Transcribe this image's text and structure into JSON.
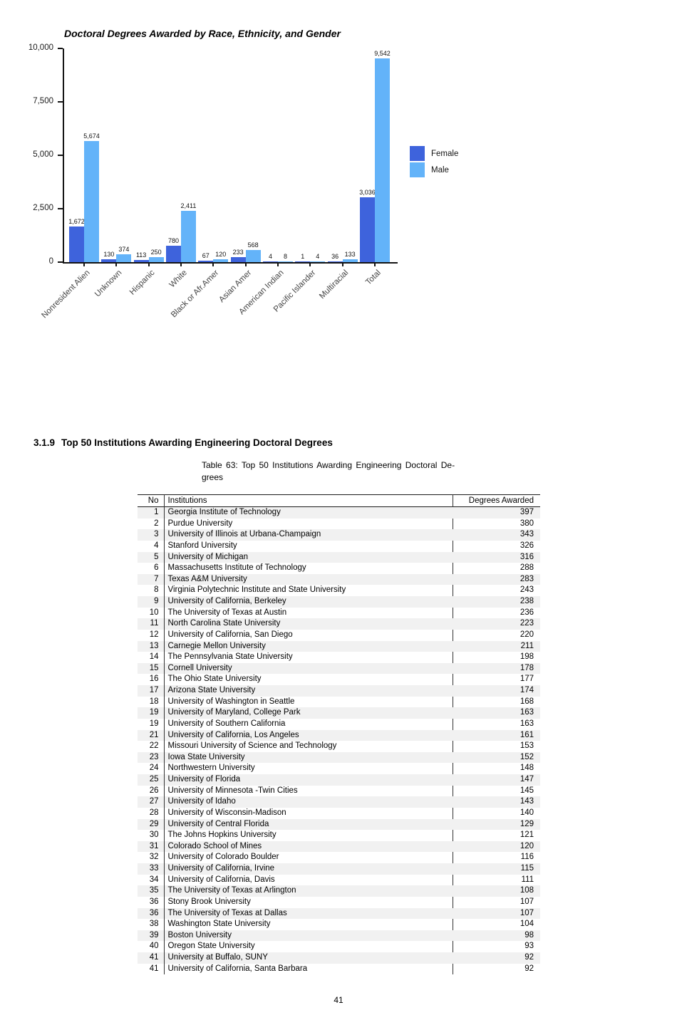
{
  "page": {
    "number": "41"
  },
  "chart_data": {
    "type": "bar",
    "title": "Doctoral Degrees Awarded by Race, Ethnicity, and Gender",
    "categories": [
      "Nonresident Alien",
      "Unknown",
      "Hispanic",
      "White",
      "Black or Afr.Amer",
      "Asian Amer",
      "American Indian",
      "Pacific Islander",
      "Multiracial",
      "Total"
    ],
    "series": [
      {
        "name": "Female",
        "color": "#3E63DC",
        "values": [
          1672,
          130,
          113,
          780,
          67,
          233,
          4,
          1,
          36,
          3036
        ]
      },
      {
        "name": "Male",
        "color": "#63B3F9",
        "values": [
          5674,
          374,
          250,
          2411,
          120,
          568,
          8,
          4,
          133,
          9542
        ]
      }
    ],
    "ylim": [
      0,
      10000
    ],
    "y_ticks": [
      {
        "value": 0,
        "label": "0"
      },
      {
        "value": 2500,
        "label": "2,500"
      },
      {
        "value": 5000,
        "label": "5,000"
      },
      {
        "value": 7500,
        "label": "7,500"
      },
      {
        "value": 10000,
        "label": "10,000"
      }
    ],
    "bar_value_labels": true,
    "grid": false,
    "legend_position": "right",
    "xlabel": "",
    "ylabel": ""
  },
  "section": {
    "number": "3.1.9",
    "title": "Top 50 Institutions Awarding Engineering Doctoral Degrees"
  },
  "table": {
    "caption_line1": "Table 63:  Top 50 Institutions Awarding Engineering Doctoral De-",
    "caption_line2": "grees",
    "columns": [
      "No",
      "Institutions",
      "Degrees Awarded"
    ],
    "rows": [
      [
        1,
        "Georgia Institute of Technology",
        397
      ],
      [
        2,
        "Purdue University",
        380
      ],
      [
        3,
        "University of Illinois at Urbana-Champaign",
        343
      ],
      [
        4,
        "Stanford University",
        326
      ],
      [
        5,
        "University of Michigan",
        316
      ],
      [
        6,
        "Massachusetts Institute of Technology",
        288
      ],
      [
        7,
        "Texas A&M University",
        283
      ],
      [
        8,
        "Virginia Polytechnic Institute and State University",
        243
      ],
      [
        9,
        "University of California, Berkeley",
        238
      ],
      [
        10,
        "The University of Texas at Austin",
        236
      ],
      [
        11,
        "North Carolina State University",
        223
      ],
      [
        12,
        "University of California, San Diego",
        220
      ],
      [
        13,
        "Carnegie Mellon University",
        211
      ],
      [
        14,
        "The Pennsylvania State University",
        198
      ],
      [
        15,
        "Cornell University",
        178
      ],
      [
        16,
        "The Ohio State University",
        177
      ],
      [
        17,
        "Arizona State University",
        174
      ],
      [
        18,
        "University of Washington in Seattle",
        168
      ],
      [
        19,
        "University of Maryland, College Park",
        163
      ],
      [
        19,
        "University of Southern California",
        163
      ],
      [
        21,
        "University of California, Los Angeles",
        161
      ],
      [
        22,
        "Missouri University of Science and Technology",
        153
      ],
      [
        23,
        "Iowa State University",
        152
      ],
      [
        24,
        "Northwestern University",
        148
      ],
      [
        25,
        "University of Florida",
        147
      ],
      [
        26,
        "University of Minnesota -Twin Cities",
        145
      ],
      [
        27,
        "University of Idaho",
        143
      ],
      [
        28,
        "University of Wisconsin-Madison",
        140
      ],
      [
        29,
        "University of Central Florida",
        129
      ],
      [
        30,
        "The Johns Hopkins University",
        121
      ],
      [
        31,
        "Colorado School of Mines",
        120
      ],
      [
        32,
        "University of Colorado Boulder",
        116
      ],
      [
        33,
        "University of California, Irvine",
        115
      ],
      [
        34,
        "University of California, Davis",
        111
      ],
      [
        35,
        "The University of Texas at Arlington",
        108
      ],
      [
        36,
        "Stony Brook University",
        107
      ],
      [
        36,
        "The University of Texas at Dallas",
        107
      ],
      [
        38,
        "Washington State University",
        104
      ],
      [
        39,
        "Boston University",
        98
      ],
      [
        40,
        "Oregon State University",
        93
      ],
      [
        41,
        "University at Buffalo, SUNY",
        92
      ],
      [
        41,
        "University of California, Santa Barbara",
        92
      ]
    ]
  }
}
